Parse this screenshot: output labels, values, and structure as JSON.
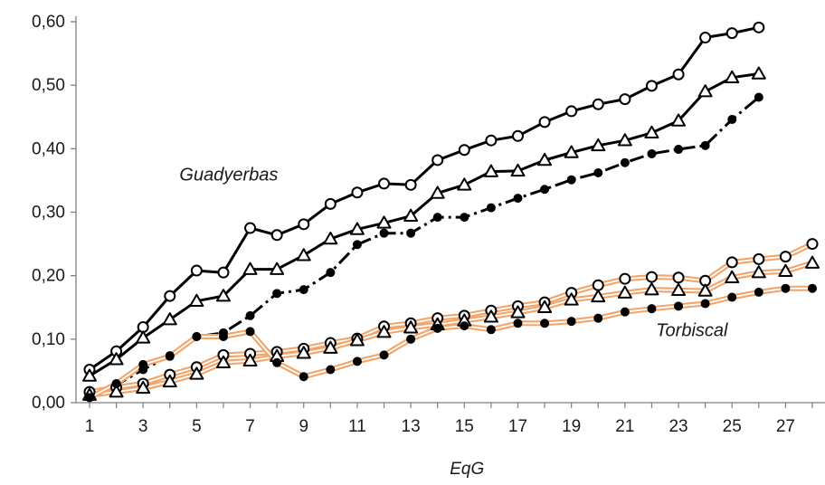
{
  "chart_data": {
    "type": "line",
    "xlabel": "EqG",
    "ylabel": "",
    "xlim": [
      1,
      28
    ],
    "ylim": [
      0,
      0.6
    ],
    "grid": false,
    "yticks": [
      "0,00",
      "0,10",
      "0,20",
      "0,30",
      "0,40",
      "0,50",
      "0,60"
    ],
    "yticks_values": [
      0,
      0.1,
      0.2,
      0.3,
      0.4,
      0.5,
      0.6
    ],
    "xticks": [
      "1",
      "3",
      "5",
      "7",
      "9",
      "11",
      "13",
      "15",
      "17",
      "19",
      "21",
      "23",
      "25",
      "27"
    ],
    "xticks_values": [
      1,
      3,
      5,
      7,
      9,
      11,
      13,
      15,
      17,
      19,
      21,
      23,
      25,
      27
    ],
    "annotations": [
      {
        "text": "Guadyerbas",
        "x": 6.2,
        "y": 0.35
      },
      {
        "text": "Torbiscal",
        "x": 23.5,
        "y": 0.105
      }
    ],
    "colors": {
      "guadyerbas": "#000000",
      "torbiscal": "#f2a46a",
      "torbiscal_core": "#000000"
    },
    "series": [
      {
        "group": "Guadyerbas",
        "marker": "circle-open",
        "line": "solid",
        "color": "#000000",
        "x": [
          1,
          2,
          3,
          4,
          5,
          6,
          7,
          8,
          9,
          10,
          11,
          12,
          13,
          14,
          15,
          16,
          17,
          18,
          19,
          20,
          21,
          22,
          23,
          24,
          25,
          26
        ],
        "y": [
          0.052,
          0.081,
          0.119,
          0.168,
          0.208,
          0.205,
          0.275,
          0.264,
          0.281,
          0.313,
          0.331,
          0.345,
          0.343,
          0.382,
          0.398,
          0.413,
          0.42,
          0.442,
          0.459,
          0.47,
          0.478,
          0.499,
          0.517,
          0.575,
          0.582,
          0.591
        ]
      },
      {
        "group": "Guadyerbas",
        "marker": "triangle-open",
        "line": "solid",
        "color": "#000000",
        "x": [
          1,
          2,
          3,
          4,
          5,
          6,
          7,
          8,
          9,
          10,
          11,
          12,
          13,
          14,
          15,
          16,
          17,
          18,
          19,
          20,
          21,
          22,
          23,
          24,
          25,
          26
        ],
        "y": [
          0.042,
          0.068,
          0.102,
          0.131,
          0.16,
          0.168,
          0.21,
          0.21,
          0.232,
          0.258,
          0.273,
          0.283,
          0.294,
          0.33,
          0.343,
          0.364,
          0.365,
          0.382,
          0.394,
          0.405,
          0.413,
          0.425,
          0.444,
          0.49,
          0.512,
          0.518
        ]
      },
      {
        "group": "Guadyerbas",
        "marker": "dot-filled",
        "line": "dashdot",
        "color": "#000000",
        "x": [
          1,
          2,
          3,
          4,
          5,
          6,
          7,
          8,
          9,
          10,
          11,
          12,
          13,
          14,
          15,
          16,
          17,
          18,
          19,
          20,
          21,
          22,
          23,
          24,
          25,
          26
        ],
        "y": [
          0.008,
          0.028,
          0.052,
          0.074,
          0.104,
          0.11,
          0.137,
          0.172,
          0.178,
          0.205,
          0.249,
          0.267,
          0.267,
          0.292,
          0.292,
          0.307,
          0.322,
          0.336,
          0.351,
          0.362,
          0.378,
          0.392,
          0.399,
          0.405,
          0.446,
          0.481
        ]
      },
      {
        "group": "Torbiscal",
        "marker": "circle-open",
        "line": "double",
        "color": "#f2a46a",
        "x": [
          1,
          2,
          3,
          4,
          5,
          6,
          7,
          8,
          9,
          10,
          11,
          12,
          13,
          14,
          15,
          16,
          17,
          18,
          19,
          20,
          21,
          22,
          23,
          24,
          25,
          26,
          27,
          28
        ],
        "y": [
          0.017,
          0.024,
          0.03,
          0.044,
          0.056,
          0.075,
          0.077,
          0.08,
          0.085,
          0.094,
          0.101,
          0.12,
          0.125,
          0.133,
          0.137,
          0.145,
          0.152,
          0.158,
          0.173,
          0.185,
          0.195,
          0.198,
          0.197,
          0.192,
          0.221,
          0.226,
          0.23,
          0.25
        ]
      },
      {
        "group": "Torbiscal",
        "marker": "triangle-open",
        "line": "double",
        "color": "#f2a46a",
        "x": [
          1,
          2,
          3,
          4,
          5,
          6,
          7,
          8,
          9,
          10,
          11,
          12,
          13,
          14,
          15,
          16,
          17,
          18,
          19,
          20,
          21,
          22,
          23,
          24,
          25,
          26,
          27,
          28
        ],
        "y": [
          0.012,
          0.017,
          0.023,
          0.033,
          0.045,
          0.063,
          0.066,
          0.073,
          0.078,
          0.086,
          0.098,
          0.111,
          0.118,
          0.123,
          0.129,
          0.135,
          0.142,
          0.15,
          0.162,
          0.167,
          0.173,
          0.178,
          0.177,
          0.176,
          0.197,
          0.205,
          0.207,
          0.22
        ]
      },
      {
        "group": "Torbiscal",
        "marker": "dot-filled",
        "line": "double",
        "color": "#f2a46a",
        "x": [
          1,
          2,
          3,
          4,
          5,
          6,
          7,
          8,
          9,
          10,
          11,
          12,
          13,
          14,
          15,
          16,
          17,
          18,
          19,
          20,
          21,
          22,
          23,
          24,
          25,
          26,
          27,
          28
        ],
        "y": [
          0.008,
          0.03,
          0.06,
          0.073,
          0.104,
          0.104,
          0.112,
          0.063,
          0.041,
          0.052,
          0.065,
          0.075,
          0.1,
          0.117,
          0.121,
          0.115,
          0.125,
          0.125,
          0.128,
          0.133,
          0.143,
          0.148,
          0.152,
          0.156,
          0.166,
          0.174,
          0.18,
          0.18
        ]
      }
    ]
  }
}
